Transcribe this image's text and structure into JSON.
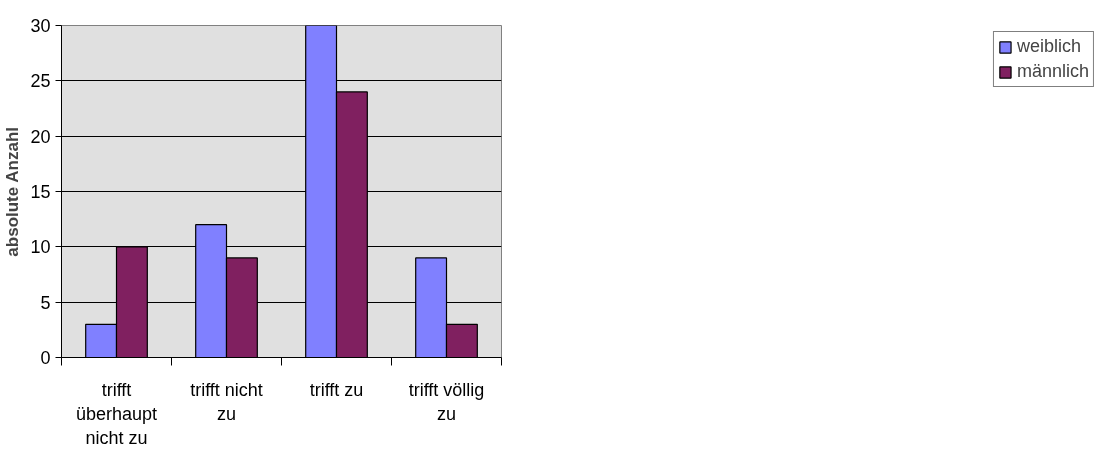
{
  "chart_data": {
    "type": "bar",
    "ylabel": "absolute Anzahl",
    "categories": [
      "trifft überhaupt nicht zu",
      "trifft nicht zu",
      "trifft zu",
      "trifft völlig zu"
    ],
    "series": [
      {
        "name": "weiblich",
        "color": "#8080ff",
        "values": [
          3,
          12,
          30,
          9
        ]
      },
      {
        "name": "männlich",
        "color": "#802060",
        "values": [
          10,
          9,
          24,
          3
        ]
      }
    ],
    "ylim": [
      0,
      30
    ],
    "yticks": [
      0,
      5,
      10,
      15,
      20,
      25,
      30
    ],
    "grid": "y",
    "legend": "right"
  }
}
